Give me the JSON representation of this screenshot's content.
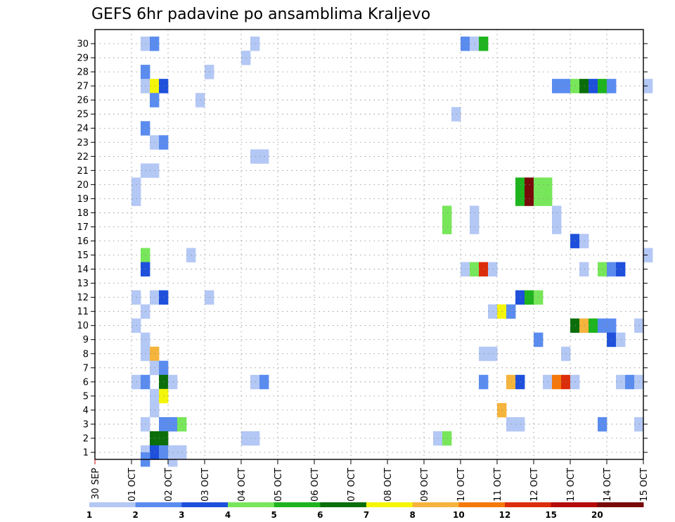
{
  "chart_data": {
    "type": "heatmap",
    "title": "GEFS 6hr padavine po ansamblima Kraljevo",
    "xlabel": "",
    "ylabel": "",
    "x_tick_labels": [
      "30 SEP",
      "01 OCT",
      "02 OCT",
      "03 OCT",
      "04 OCT",
      "05 OCT",
      "06 OCT",
      "07 OCT",
      "08 OCT",
      "09 OCT",
      "10 OCT",
      "11 OCT",
      "12 OCT",
      "13 OCT",
      "14 OCT",
      "15 OCT"
    ],
    "y_tick_labels": [
      "1",
      "2",
      "3",
      "4",
      "5",
      "6",
      "7",
      "8",
      "9",
      "10",
      "11",
      "12",
      "13",
      "14",
      "15",
      "16",
      "17",
      "18",
      "19",
      "20",
      "21",
      "22",
      "23",
      "24",
      "25",
      "26",
      "27",
      "28",
      "29",
      "30"
    ],
    "x_unit": "6-hour step from 30 SEP (4 steps per day)",
    "y_unit": "ensemble member",
    "grid": true,
    "legend_position": "bottom",
    "legend": {
      "labels": [
        "1",
        "2",
        "3",
        "4",
        "5",
        "6",
        "7",
        "8",
        "10",
        "12",
        "15",
        "20"
      ],
      "colors": [
        "#b4c8f5",
        "#5a8cf0",
        "#1e50dc",
        "#78e65a",
        "#1eb41e",
        "#0a6e0a",
        "#f5f50a",
        "#f5b43c",
        "#f5780a",
        "#dc2d0a",
        "#b40a0a",
        "#780a0a"
      ]
    },
    "cells": [
      {
        "x": 5,
        "y": 30,
        "c": 0
      },
      {
        "x": 6,
        "y": 30,
        "c": 1
      },
      {
        "x": 17,
        "y": 30,
        "c": 0
      },
      {
        "x": 40,
        "y": 30,
        "c": 1
      },
      {
        "x": 41,
        "y": 30,
        "c": 0
      },
      {
        "x": 42,
        "y": 30,
        "c": 4
      },
      {
        "x": 16,
        "y": 29,
        "c": 0
      },
      {
        "x": 5,
        "y": 28,
        "c": 1
      },
      {
        "x": 12,
        "y": 28,
        "c": 0
      },
      {
        "x": 5,
        "y": 27,
        "c": 0
      },
      {
        "x": 6,
        "y": 27,
        "c": 6
      },
      {
        "x": 7,
        "y": 27,
        "c": 2
      },
      {
        "x": 50,
        "y": 27,
        "c": 1
      },
      {
        "x": 51,
        "y": 27,
        "c": 1
      },
      {
        "x": 52,
        "y": 27,
        "c": 3
      },
      {
        "x": 53,
        "y": 27,
        "c": 5
      },
      {
        "x": 54,
        "y": 27,
        "c": 2
      },
      {
        "x": 55,
        "y": 27,
        "c": 4
      },
      {
        "x": 56,
        "y": 27,
        "c": 1
      },
      {
        "x": 60,
        "y": 27,
        "c": 0
      },
      {
        "x": 6,
        "y": 26,
        "c": 1
      },
      {
        "x": 11,
        "y": 26,
        "c": 0
      },
      {
        "x": 39,
        "y": 25,
        "c": 0
      },
      {
        "x": 5,
        "y": 24,
        "c": 1
      },
      {
        "x": 6,
        "y": 23,
        "c": 0
      },
      {
        "x": 7,
        "y": 23,
        "c": 1
      },
      {
        "x": 17,
        "y": 22,
        "c": 0
      },
      {
        "x": 18,
        "y": 22,
        "c": 0
      },
      {
        "x": 5,
        "y": 21,
        "c": 0
      },
      {
        "x": 6,
        "y": 21,
        "c": 0
      },
      {
        "x": 4,
        "y": 20,
        "c": 0
      },
      {
        "x": 46,
        "y": 20,
        "c": 4
      },
      {
        "x": 47,
        "y": 20,
        "c": 11
      },
      {
        "x": 48,
        "y": 20,
        "c": 3
      },
      {
        "x": 49,
        "y": 20,
        "c": 3
      },
      {
        "x": 4,
        "y": 19,
        "c": 0
      },
      {
        "x": 46,
        "y": 19,
        "c": 4
      },
      {
        "x": 47,
        "y": 19,
        "c": 11
      },
      {
        "x": 48,
        "y": 19,
        "c": 3
      },
      {
        "x": 49,
        "y": 19,
        "c": 3
      },
      {
        "x": 38,
        "y": 18,
        "c": 3
      },
      {
        "x": 41,
        "y": 18,
        "c": 0
      },
      {
        "x": 50,
        "y": 18,
        "c": 0
      },
      {
        "x": 38,
        "y": 17,
        "c": 3
      },
      {
        "x": 41,
        "y": 17,
        "c": 0
      },
      {
        "x": 50,
        "y": 17,
        "c": 0
      },
      {
        "x": 52,
        "y": 16,
        "c": 2
      },
      {
        "x": 53,
        "y": 16,
        "c": 0
      },
      {
        "x": 5,
        "y": 15,
        "c": 3
      },
      {
        "x": 10,
        "y": 15,
        "c": 0
      },
      {
        "x": 60,
        "y": 15,
        "c": 0
      },
      {
        "x": 5,
        "y": 14,
        "c": 2
      },
      {
        "x": 40,
        "y": 14,
        "c": 0
      },
      {
        "x": 41,
        "y": 14,
        "c": 3
      },
      {
        "x": 42,
        "y": 14,
        "c": 9
      },
      {
        "x": 43,
        "y": 14,
        "c": 0
      },
      {
        "x": 53,
        "y": 14,
        "c": 0
      },
      {
        "x": 55,
        "y": 14,
        "c": 3
      },
      {
        "x": 56,
        "y": 14,
        "c": 1
      },
      {
        "x": 57,
        "y": 14,
        "c": 2
      },
      {
        "x": 4,
        "y": 12,
        "c": 0
      },
      {
        "x": 6,
        "y": 12,
        "c": 0
      },
      {
        "x": 7,
        "y": 12,
        "c": 2
      },
      {
        "x": 12,
        "y": 12,
        "c": 0
      },
      {
        "x": 46,
        "y": 12,
        "c": 2
      },
      {
        "x": 47,
        "y": 12,
        "c": 4
      },
      {
        "x": 48,
        "y": 12,
        "c": 3
      },
      {
        "x": 5,
        "y": 11,
        "c": 0
      },
      {
        "x": 43,
        "y": 11,
        "c": 0
      },
      {
        "x": 44,
        "y": 11,
        "c": 6
      },
      {
        "x": 45,
        "y": 11,
        "c": 1
      },
      {
        "x": 4,
        "y": 10,
        "c": 0
      },
      {
        "x": 52,
        "y": 10,
        "c": 5
      },
      {
        "x": 53,
        "y": 10,
        "c": 7
      },
      {
        "x": 54,
        "y": 10,
        "c": 4
      },
      {
        "x": 55,
        "y": 10,
        "c": 1
      },
      {
        "x": 56,
        "y": 10,
        "c": 1
      },
      {
        "x": 59,
        "y": 10,
        "c": 0
      },
      {
        "x": 5,
        "y": 9,
        "c": 0
      },
      {
        "x": 48,
        "y": 9,
        "c": 1
      },
      {
        "x": 56,
        "y": 9,
        "c": 2
      },
      {
        "x": 57,
        "y": 9,
        "c": 0
      },
      {
        "x": 5,
        "y": 8,
        "c": 0
      },
      {
        "x": 6,
        "y": 8,
        "c": 7
      },
      {
        "x": 42,
        "y": 8,
        "c": 0
      },
      {
        "x": 43,
        "y": 8,
        "c": 0
      },
      {
        "x": 51,
        "y": 8,
        "c": 0
      },
      {
        "x": 6,
        "y": 7,
        "c": 0
      },
      {
        "x": 7,
        "y": 7,
        "c": 1
      },
      {
        "x": 4,
        "y": 6,
        "c": 0
      },
      {
        "x": 5,
        "y": 6,
        "c": 1
      },
      {
        "x": 7,
        "y": 6,
        "c": 5
      },
      {
        "x": 8,
        "y": 6,
        "c": 0
      },
      {
        "x": 17,
        "y": 6,
        "c": 0
      },
      {
        "x": 18,
        "y": 6,
        "c": 1
      },
      {
        "x": 42,
        "y": 6,
        "c": 1
      },
      {
        "x": 45,
        "y": 6,
        "c": 7
      },
      {
        "x": 46,
        "y": 6,
        "c": 2
      },
      {
        "x": 49,
        "y": 6,
        "c": 0
      },
      {
        "x": 50,
        "y": 6,
        "c": 8
      },
      {
        "x": 51,
        "y": 6,
        "c": 9
      },
      {
        "x": 52,
        "y": 6,
        "c": 0
      },
      {
        "x": 57,
        "y": 6,
        "c": 0
      },
      {
        "x": 58,
        "y": 6,
        "c": 1
      },
      {
        "x": 59,
        "y": 6,
        "c": 0
      },
      {
        "x": 6,
        "y": 5,
        "c": 0
      },
      {
        "x": 7,
        "y": 5,
        "c": 6
      },
      {
        "x": 6,
        "y": 4,
        "c": 0
      },
      {
        "x": 44,
        "y": 4,
        "c": 7
      },
      {
        "x": 5,
        "y": 3,
        "c": 0
      },
      {
        "x": 7,
        "y": 3,
        "c": 1
      },
      {
        "x": 8,
        "y": 3,
        "c": 1
      },
      {
        "x": 9,
        "y": 3,
        "c": 3
      },
      {
        "x": 45,
        "y": 3,
        "c": 0
      },
      {
        "x": 46,
        "y": 3,
        "c": 0
      },
      {
        "x": 55,
        "y": 3,
        "c": 1
      },
      {
        "x": 59,
        "y": 3,
        "c": 0
      },
      {
        "x": 6,
        "y": 2,
        "c": 5
      },
      {
        "x": 7,
        "y": 2,
        "c": 5
      },
      {
        "x": 16,
        "y": 2,
        "c": 0
      },
      {
        "x": 17,
        "y": 2,
        "c": 0
      },
      {
        "x": 37,
        "y": 2,
        "c": 0
      },
      {
        "x": 38,
        "y": 2,
        "c": 3
      },
      {
        "x": 5,
        "y": 1,
        "c": 0
      },
      {
        "x": 6,
        "y": 1,
        "c": 2
      },
      {
        "x": 7,
        "y": 1,
        "c": 1
      },
      {
        "x": 8,
        "y": 1,
        "c": 0
      },
      {
        "x": 9,
        "y": 1,
        "c": 0
      },
      {
        "x": 5,
        "y": 0.5,
        "c": 1
      },
      {
        "x": 8,
        "y": 0.5,
        "c": 0
      }
    ]
  }
}
